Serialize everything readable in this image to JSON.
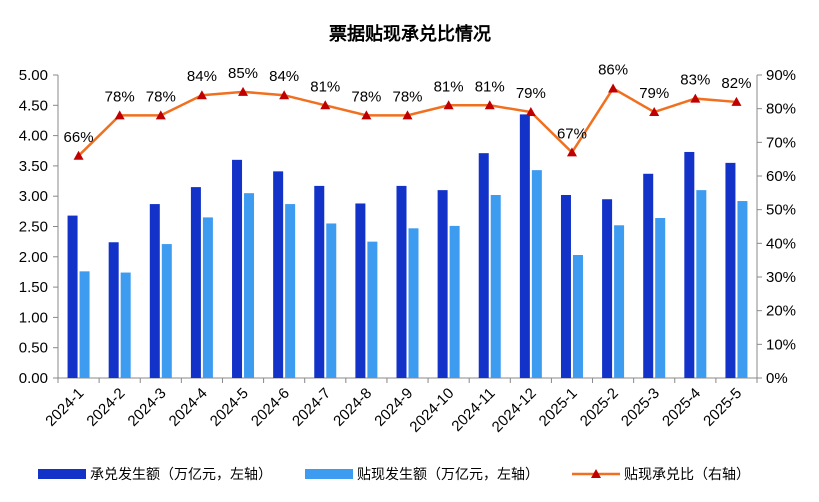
{
  "chart_data": {
    "type": "bar",
    "title": "票据贴现承兑比情况",
    "categories": [
      "2024-1",
      "2024-2",
      "2024-3",
      "2024-4",
      "2024-5",
      "2024-6",
      "2024-7",
      "2024-8",
      "2024-9",
      "2024-10",
      "2024-11",
      "2024-12",
      "2025-1",
      "2025-2",
      "2025-3",
      "2025-4",
      "2025-5"
    ],
    "series": [
      {
        "name": "承兑发生额（万亿元，左轴）",
        "kind": "bar",
        "axis": "left",
        "color": "#1232C8",
        "values": [
          2.68,
          2.24,
          2.87,
          3.15,
          3.6,
          3.41,
          3.17,
          2.88,
          3.17,
          3.1,
          3.71,
          4.35,
          3.02,
          2.95,
          3.37,
          3.73,
          3.55
        ]
      },
      {
        "name": "贴现发生额（万亿元，左轴）",
        "kind": "bar",
        "axis": "left",
        "color": "#3D9BF0",
        "values": [
          1.76,
          1.74,
          2.21,
          2.65,
          3.05,
          2.87,
          2.55,
          2.25,
          2.47,
          2.51,
          3.02,
          3.43,
          2.03,
          2.52,
          2.64,
          3.1,
          2.92
        ]
      },
      {
        "name": "贴现承兑比（右轴）",
        "kind": "line",
        "axis": "right",
        "color": "#F07020",
        "marker_color": "#C00000",
        "values": [
          66,
          78,
          78,
          84,
          85,
          84,
          81,
          78,
          78,
          81,
          81,
          79,
          67,
          86,
          79,
          83,
          82
        ],
        "labels": [
          "66%",
          "78%",
          "78%",
          "84%",
          "85%",
          "84%",
          "81%",
          "78%",
          "78%",
          "81%",
          "81%",
          "79%",
          "67%",
          "86%",
          "79%",
          "83%",
          "82%"
        ]
      }
    ],
    "left_axis": {
      "min": 0,
      "max": 5,
      "step": 0.5,
      "ticks": [
        "0.00",
        "0.50",
        "1.00",
        "1.50",
        "2.00",
        "2.50",
        "3.00",
        "3.50",
        "4.00",
        "4.50",
        "5.00"
      ]
    },
    "right_axis": {
      "min": 0,
      "max": 90,
      "step": 10,
      "ticks": [
        "0%",
        "10%",
        "20%",
        "30%",
        "40%",
        "50%",
        "60%",
        "70%",
        "80%",
        "90%"
      ]
    },
    "grid": false,
    "legend_position": "bottom"
  }
}
